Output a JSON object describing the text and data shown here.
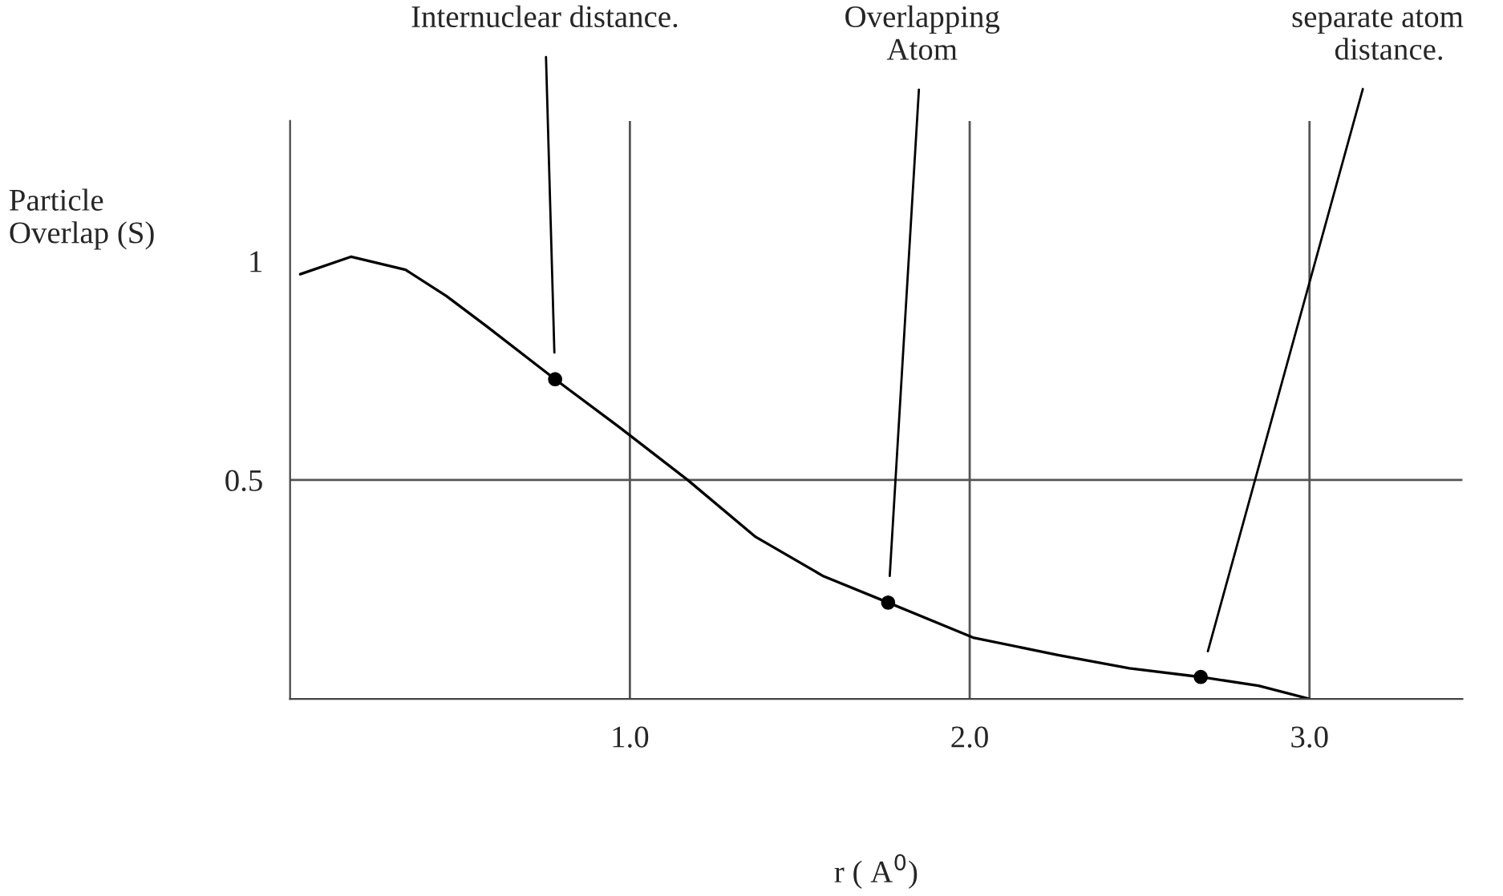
{
  "chart_data": {
    "type": "line",
    "xlabel": "r ( A$^{0}$)",
    "ylabel": "Particle\nOverlap (S)",
    "x": [
      0.03,
      0.18,
      0.34,
      0.46,
      0.58,
      0.78,
      0.97,
      1.17,
      1.37,
      1.57,
      1.76,
      2.01,
      2.26,
      2.47,
      2.68,
      2.85,
      3.0
    ],
    "series": [
      {
        "color": "#000000",
        "values": [
          0.97,
          1.01,
          0.98,
          0.92,
          0.85,
          0.73,
          0.62,
          0.5,
          0.37,
          0.28,
          0.22,
          0.14,
          0.1,
          0.07,
          0.05,
          0.03,
          0.0
        ]
      },
      {
        "type": "scatter",
        "color": "#000000",
        "x": [
          0.78,
          1.76,
          2.68
        ],
        "values": [
          0.73,
          0.22,
          0.05
        ]
      }
    ],
    "xlim": [
      0,
      3.45
    ],
    "ylim": [
      0,
      1.32
    ],
    "xticks": [
      {
        "value": 1,
        "label": "1.0"
      },
      {
        "value": 2,
        "label": "2.0"
      },
      {
        "value": 3,
        "label": "3.0"
      }
    ],
    "yticks": [
      0.5,
      1
    ],
    "grid": "x",
    "ref_lines": [
      {
        "axis": "y",
        "value": 0.5,
        "color": "#555555"
      }
    ],
    "annotations": [
      "Internuclear distance.",
      "Overlapping\nAtom",
      "separate atom\n   distance."
    ]
  }
}
